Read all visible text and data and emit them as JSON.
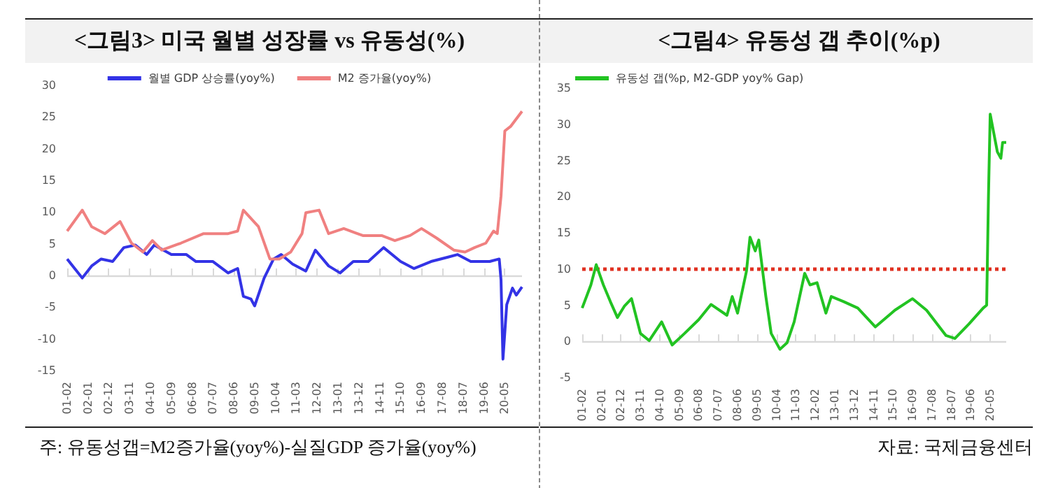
{
  "chart_data": [
    {
      "type": "line",
      "title": "<그림3> 미국 월별 성장률 vs 유동성(%)",
      "legend": "top",
      "marker": "none",
      "grid": false,
      "ref_lines": [
        {
          "axis": "y",
          "value": 0,
          "color": "#d9d9d9",
          "line_style": "solid"
        }
      ],
      "xlim": [
        "2001-02",
        "2021-02"
      ],
      "ylim": [
        -15,
        30
      ],
      "yticks": [
        -15,
        -10,
        -5,
        0,
        5,
        10,
        15,
        20,
        25,
        30
      ],
      "xticks": [
        {
          "value": "2001-02",
          "label": "01-02"
        },
        {
          "value": "2002-01",
          "label": "02-01"
        },
        {
          "value": "2002-12",
          "label": "02-12"
        },
        {
          "value": "2003-11",
          "label": "03-11"
        },
        {
          "value": "2004-10",
          "label": "04-10"
        },
        {
          "value": "2005-09",
          "label": "05-09"
        },
        {
          "value": "2006-08",
          "label": "06-08"
        },
        {
          "value": "2007-07",
          "label": "07-07"
        },
        {
          "value": "2008-06",
          "label": "08-06"
        },
        {
          "value": "2009-05",
          "label": "09-05"
        },
        {
          "value": "2010-04",
          "label": "10-04"
        },
        {
          "value": "2011-03",
          "label": "11-03"
        },
        {
          "value": "2012-02",
          "label": "12-02"
        },
        {
          "value": "2013-01",
          "label": "13-01"
        },
        {
          "value": "2013-12",
          "label": "13-12"
        },
        {
          "value": "2014-11",
          "label": "14-11"
        },
        {
          "value": "2015-10",
          "label": "15-10"
        },
        {
          "value": "2016-09",
          "label": "16-09"
        },
        {
          "value": "2017-08",
          "label": "17-08"
        },
        {
          "value": "2018-07",
          "label": "18-07"
        },
        {
          "value": "2019-06",
          "label": "19-06"
        },
        {
          "value": "2020-05",
          "label": "20-05"
        }
      ],
      "series": [
        {
          "name": "월별 GDP 상승률(yoy%)",
          "color": "#3333e6",
          "x": [
            "2001-02",
            "2001-06",
            "2001-10",
            "2002-03",
            "2002-08",
            "2003-02",
            "2003-08",
            "2004-02",
            "2004-08",
            "2004-12",
            "2005-09",
            "2006-05",
            "2006-10",
            "2007-07",
            "2008-03",
            "2008-08",
            "2008-11",
            "2009-03",
            "2009-05",
            "2009-10",
            "2010-03",
            "2010-07",
            "2011-01",
            "2011-08",
            "2012-01",
            "2012-08",
            "2013-02",
            "2013-09",
            "2014-05",
            "2015-01",
            "2015-10",
            "2016-05",
            "2017-02",
            "2017-11",
            "2018-04",
            "2018-11",
            "2019-09",
            "2020-02",
            "2020-03",
            "2020-04",
            "2020-06",
            "2020-09",
            "2020-11",
            "2021-02"
          ],
          "values": [
            2.6,
            1.1,
            -0.4,
            1.5,
            2.6,
            2.2,
            4.4,
            4.8,
            3.3,
            4.8,
            3.3,
            3.3,
            2.2,
            2.2,
            0.4,
            1.1,
            -3.3,
            -3.7,
            -4.8,
            -0.4,
            2.6,
            3.3,
            1.8,
            0.7,
            4.0,
            1.5,
            0.4,
            2.2,
            2.2,
            4.4,
            2.2,
            1.1,
            2.2,
            2.9,
            3.3,
            2.2,
            2.2,
            2.6,
            -0.7,
            -13.2,
            -4.6,
            -2.0,
            -3.1,
            -1.8
          ]
        },
        {
          "name": "M2 증가율(yoy%)",
          "color": "#f08080",
          "x": [
            "2001-02",
            "2001-10",
            "2002-03",
            "2002-10",
            "2003-06",
            "2003-12",
            "2004-06",
            "2004-11",
            "2005-04",
            "2006-02",
            "2007-02",
            "2008-03",
            "2008-08",
            "2008-11",
            "2009-07",
            "2010-01",
            "2010-06",
            "2010-12",
            "2011-06",
            "2011-08",
            "2012-03",
            "2012-08",
            "2013-04",
            "2014-02",
            "2014-12",
            "2015-07",
            "2016-03",
            "2016-09",
            "2017-05",
            "2018-02",
            "2018-08",
            "2019-01",
            "2019-07",
            "2019-11",
            "2020-01",
            "2020-03",
            "2020-05",
            "2020-08",
            "2021-02"
          ],
          "values": [
            7.0,
            10.3,
            7.7,
            6.6,
            8.5,
            5.1,
            3.7,
            5.5,
            4.0,
            5.1,
            6.6,
            6.6,
            7.0,
            10.3,
            7.7,
            2.6,
            2.6,
            3.7,
            6.6,
            9.9,
            10.3,
            6.6,
            7.4,
            6.3,
            6.3,
            5.5,
            6.3,
            7.4,
            5.9,
            4.0,
            3.7,
            4.4,
            5.1,
            7.0,
            6.6,
            12.5,
            22.8,
            23.5,
            25.9
          ]
        }
      ],
      "annotations": [
        "주: 유동성갭=M2증가율(yoy%)-실질GDP 증가율(yoy%)"
      ]
    },
    {
      "type": "line",
      "title": "<그림4> 유동성 갭 추이(%p)",
      "legend": "top left",
      "marker": "none",
      "grid": false,
      "xlim": [
        "2001-02",
        "2021-02"
      ],
      "ylim": [
        -5,
        35
      ],
      "yticks": [
        -5,
        0,
        5,
        10,
        15,
        20,
        25,
        30,
        35
      ],
      "xticks": [
        {
          "value": "2001-02",
          "label": "01-02"
        },
        {
          "value": "2002-01",
          "label": "02-01"
        },
        {
          "value": "2002-12",
          "label": "02-12"
        },
        {
          "value": "2003-11",
          "label": "03-11"
        },
        {
          "value": "2004-10",
          "label": "04-10"
        },
        {
          "value": "2005-09",
          "label": "05-09"
        },
        {
          "value": "2006-08",
          "label": "06-08"
        },
        {
          "value": "2007-07",
          "label": "07-07"
        },
        {
          "value": "2008-06",
          "label": "08-06"
        },
        {
          "value": "2009-05",
          "label": "09-05"
        },
        {
          "value": "2010-04",
          "label": "10-04"
        },
        {
          "value": "2011-03",
          "label": "11-03"
        },
        {
          "value": "2012-02",
          "label": "12-02"
        },
        {
          "value": "2013-01",
          "label": "13-01"
        },
        {
          "value": "2013-12",
          "label": "13-12"
        },
        {
          "value": "2014-11",
          "label": "14-11"
        },
        {
          "value": "2015-10",
          "label": "15-10"
        },
        {
          "value": "2016-09",
          "label": "16-09"
        },
        {
          "value": "2017-08",
          "label": "17-08"
        },
        {
          "value": "2018-07",
          "label": "18-07"
        },
        {
          "value": "2019-06",
          "label": "19-06"
        },
        {
          "value": "2020-05",
          "label": "20-05"
        }
      ],
      "ref_lines": [
        {
          "axis": "y",
          "value": 0,
          "color": "#d9d9d9",
          "line_style": "solid"
        },
        {
          "axis": "y",
          "value": 10,
          "color": "#e03020",
          "line_style": "dotted"
        }
      ],
      "series": [
        {
          "name": "유동성 갭(%p, M2-GDP yoy% Gap)",
          "color": "#22c322",
          "x": [
            "2001-02",
            "2001-05",
            "2001-07",
            "2001-10",
            "2002-02",
            "2002-06",
            "2002-10",
            "2003-02",
            "2003-06",
            "2003-11",
            "2004-04",
            "2004-11",
            "2005-05",
            "2005-12",
            "2006-08",
            "2007-03",
            "2007-12",
            "2008-03",
            "2008-06",
            "2008-11",
            "2009-01",
            "2009-04",
            "2009-06",
            "2009-10",
            "2010-01",
            "2010-06",
            "2010-10",
            "2011-02",
            "2011-08",
            "2011-11",
            "2012-03",
            "2012-08",
            "2012-11",
            "2013-06",
            "2014-02",
            "2014-12",
            "2015-11",
            "2016-09",
            "2017-05",
            "2018-04",
            "2018-09",
            "2019-05",
            "2020-01",
            "2020-03",
            "2020-04",
            "2020-05",
            "2020-09",
            "2020-11",
            "2020-12",
            "2021-02"
          ],
          "values": [
            4.6,
            6.5,
            7.8,
            10.6,
            7.8,
            5.5,
            3.3,
            4.9,
            5.9,
            1.1,
            0.1,
            2.7,
            -0.5,
            1.1,
            3.0,
            5.1,
            3.6,
            6.2,
            3.9,
            9.7,
            14.4,
            12.5,
            14.0,
            6.2,
            1.1,
            -1.1,
            -0.2,
            2.7,
            9.4,
            7.8,
            8.1,
            3.9,
            6.2,
            5.5,
            4.6,
            2.0,
            4.3,
            5.9,
            4.3,
            0.8,
            0.4,
            2.4,
            4.6,
            5.0,
            20.0,
            31.4,
            26.2,
            25.3,
            27.5,
            27.5
          ]
        }
      ],
      "annotations": [
        "자료: 국제금융센터"
      ]
    }
  ]
}
